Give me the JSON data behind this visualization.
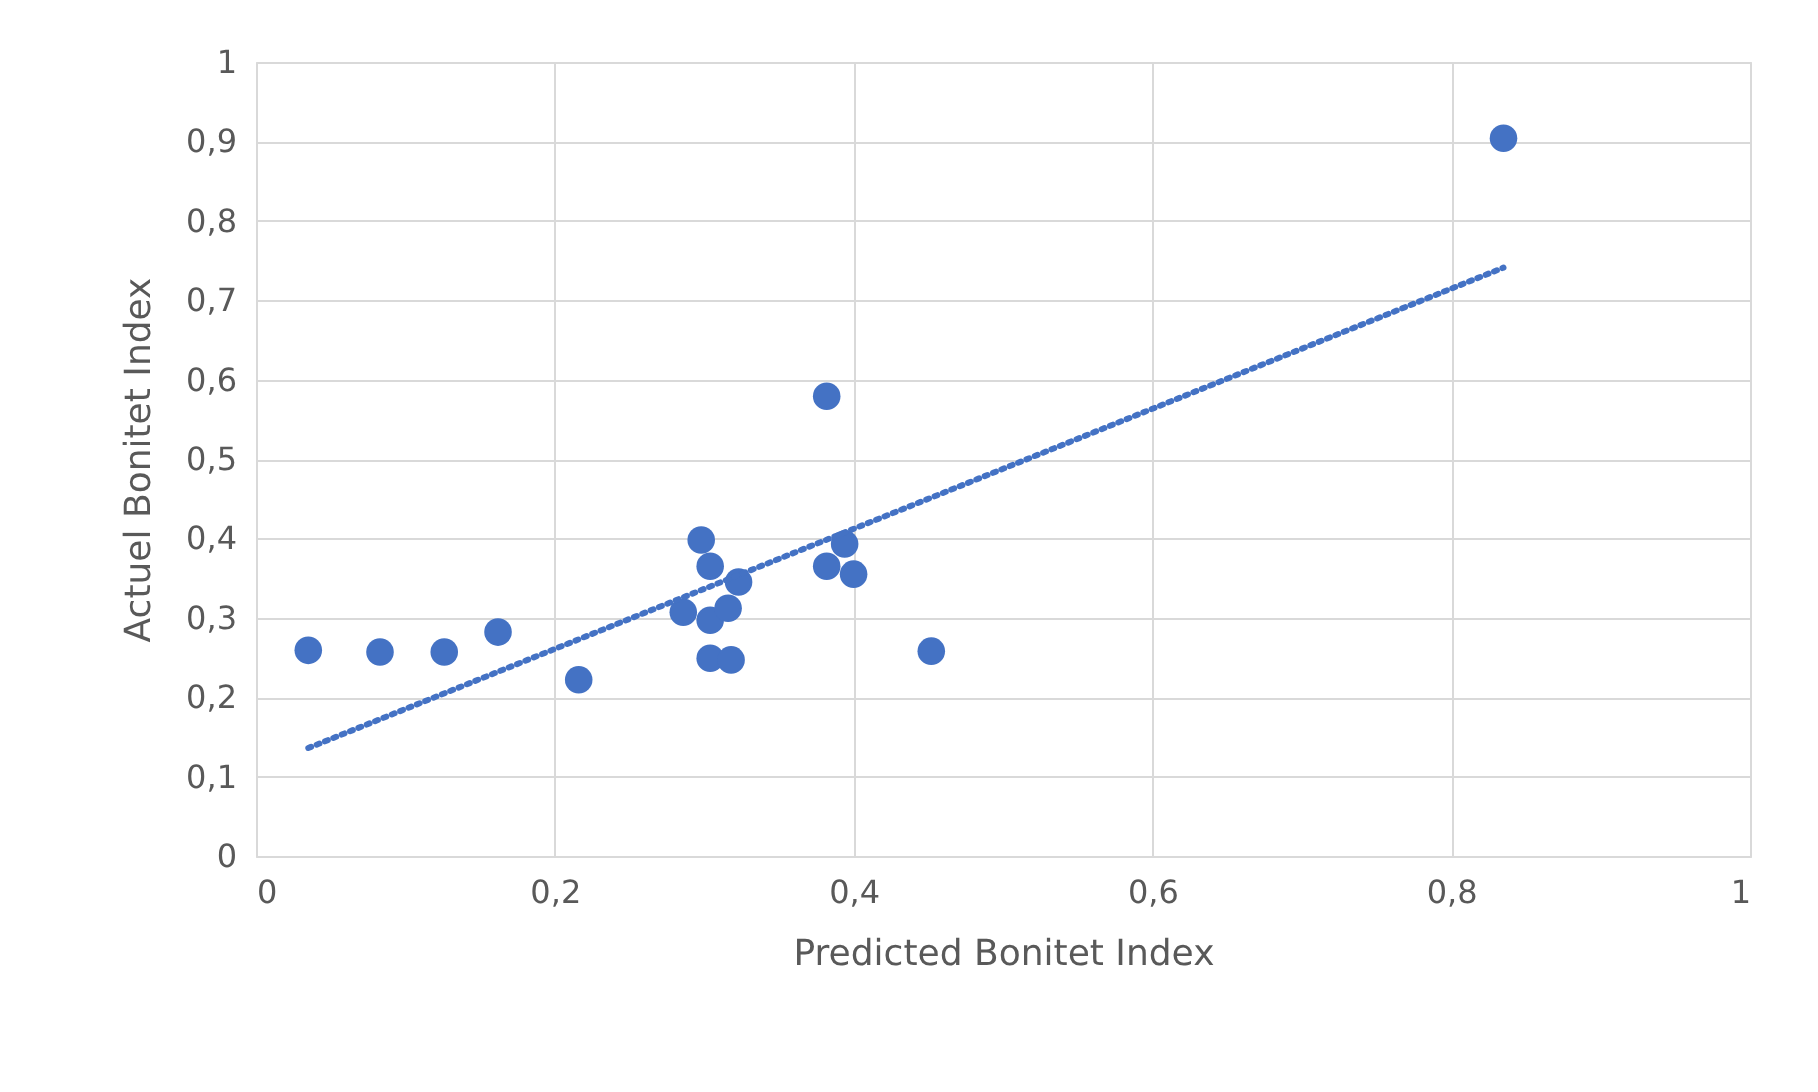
{
  "chart_data": {
    "type": "scatter",
    "xlabel": "Predicted Bonitet Index",
    "ylabel": "Actuel Bonitet Index",
    "xlim": [
      0,
      1
    ],
    "ylim": [
      0,
      1
    ],
    "xticks": [
      0,
      {
        "value": 0.2,
        "label": "0,2"
      },
      {
        "value": 0.4,
        "label": "0,4"
      },
      {
        "value": 0.6,
        "label": "0,6"
      },
      {
        "value": 0.8,
        "label": "0,8"
      },
      1
    ],
    "yticks": [
      0,
      {
        "value": 0.1,
        "label": "0,1"
      },
      {
        "value": 0.2,
        "label": "0,2"
      },
      {
        "value": 0.3,
        "label": "0,3"
      },
      {
        "value": 0.4,
        "label": "0,4"
      },
      {
        "value": 0.5,
        "label": "0,5"
      },
      {
        "value": 0.6,
        "label": "0,6"
      },
      {
        "value": 0.7,
        "label": "0,7"
      },
      {
        "value": 0.8,
        "label": "0,8"
      },
      {
        "value": 0.9,
        "label": "0,9"
      },
      1
    ],
    "grid": true,
    "marker": "circle",
    "series": [
      {
        "color": "#4472c4",
        "x": [
          0.035,
          0.083,
          0.126,
          0.162,
          0.216,
          0.286,
          0.298,
          0.304,
          0.304,
          0.304,
          0.316,
          0.318,
          0.323,
          0.382,
          0.382,
          0.394,
          0.4,
          0.452,
          0.835
        ],
        "values": [
          0.259,
          0.257,
          0.257,
          0.282,
          0.222,
          0.307,
          0.398,
          0.365,
          0.297,
          0.249,
          0.312,
          0.247,
          0.345,
          0.365,
          0.579,
          0.393,
          0.355,
          0.258,
          0.904
        ]
      },
      {
        "type": "line",
        "color": "#4472c4",
        "line_style": "dotted",
        "marker": "none",
        "x": [
          0.035,
          0.835
        ],
        "values": [
          0.136,
          0.741
        ]
      }
    ]
  }
}
